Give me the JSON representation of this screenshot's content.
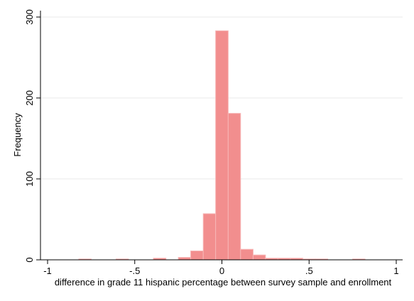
{
  "chart_data": {
    "type": "bar",
    "xlabel": "difference in grade 11 hispanic percentage between survey sample and enrollment",
    "ylabel": "Frequency",
    "xlim": [
      -1,
      1
    ],
    "ylim": [
      0,
      300
    ],
    "bin_width": 0.0714,
    "x_ticks": [
      {
        "value": -1,
        "label": "-1"
      },
      {
        "value": -0.5,
        "label": "-.5"
      },
      {
        "value": 0,
        "label": "0"
      },
      {
        "value": 0.5,
        "label": ".5"
      },
      {
        "value": 1,
        "label": "1"
      }
    ],
    "y_ticks": [
      {
        "value": 0,
        "label": "0"
      },
      {
        "value": 100,
        "label": "100"
      },
      {
        "value": 200,
        "label": "200"
      },
      {
        "value": 300,
        "label": "300"
      }
    ],
    "bins": [
      {
        "x0": -0.821,
        "x1": -0.75,
        "count": 1
      },
      {
        "x0": -0.607,
        "x1": -0.536,
        "count": 1
      },
      {
        "x0": -0.393,
        "x1": -0.321,
        "count": 2
      },
      {
        "x0": -0.25,
        "x1": -0.179,
        "count": 3
      },
      {
        "x0": -0.179,
        "x1": -0.107,
        "count": 11
      },
      {
        "x0": -0.107,
        "x1": -0.036,
        "count": 57
      },
      {
        "x0": -0.036,
        "x1": 0.036,
        "count": 283
      },
      {
        "x0": 0.036,
        "x1": 0.107,
        "count": 181
      },
      {
        "x0": 0.107,
        "x1": 0.179,
        "count": 13
      },
      {
        "x0": 0.179,
        "x1": 0.25,
        "count": 6
      },
      {
        "x0": 0.25,
        "x1": 0.321,
        "count": 2
      },
      {
        "x0": 0.321,
        "x1": 0.393,
        "count": 2
      },
      {
        "x0": 0.393,
        "x1": 0.464,
        "count": 2
      },
      {
        "x0": 0.464,
        "x1": 0.536,
        "count": 1
      },
      {
        "x0": 0.536,
        "x1": 0.607,
        "count": 1
      },
      {
        "x0": 0.75,
        "x1": 0.821,
        "count": 1
      }
    ],
    "bar_color": "#f28e8e",
    "bar_edge_color": "#f7b6b6",
    "gridlines": true,
    "grid_color": "#e8e8e8",
    "legend": "none"
  }
}
